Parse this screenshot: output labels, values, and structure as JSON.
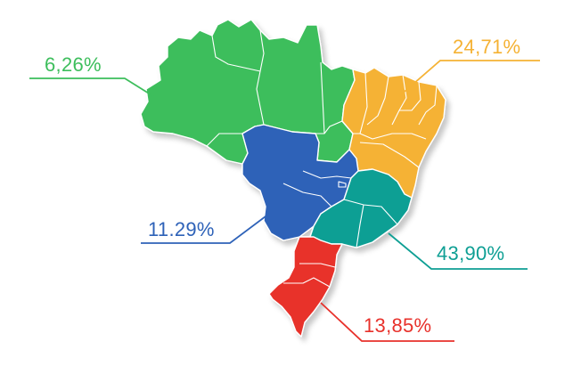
{
  "regions": [
    {
      "id": "north",
      "label": "6,26%",
      "color": "#3dbe5c"
    },
    {
      "id": "northeast",
      "label": "24,71%",
      "color": "#f5b234"
    },
    {
      "id": "center_west",
      "label": "11.29%",
      "color": "#2e62b8"
    },
    {
      "id": "southeast",
      "label": "43,90%",
      "color": "#0e9f94"
    },
    {
      "id": "south",
      "label": "13,85%",
      "color": "#e8312b"
    }
  ]
}
